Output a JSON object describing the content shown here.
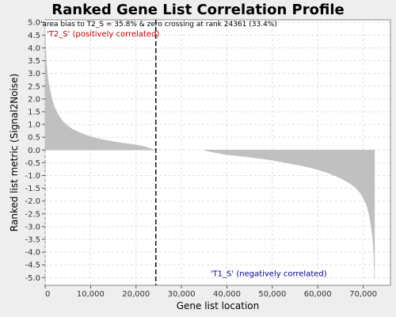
{
  "chart_data": {
    "type": "area",
    "title": "Ranked Gene List Correlation Profile",
    "xlabel": "Gene list location",
    "ylabel": "Ranked list metric (Signal2Noise)",
    "xlim": [
      0,
      76000
    ],
    "ylim": [
      -5.3,
      5.1
    ],
    "xticks": [
      0,
      10000,
      20000,
      30000,
      40000,
      50000,
      60000,
      70000
    ],
    "xtick_labels": [
      "0",
      "10,000",
      "20,000",
      "30,000",
      "40,000",
      "50,000",
      "60,000",
      "70,000"
    ],
    "yticks": [
      5.0,
      4.5,
      4.0,
      3.5,
      3.0,
      2.5,
      2.0,
      1.5,
      1.0,
      0.5,
      0.0,
      -0.5,
      -1.0,
      -1.5,
      -2.0,
      -2.5,
      -3.0,
      -3.5,
      -4.0,
      -4.5,
      -5.0
    ],
    "ytick_labels": [
      "5.0",
      "4.5",
      "4.0",
      "3.5",
      "3.0",
      "2.5",
      "2.0",
      "1.5",
      "1.0",
      "0.5",
      "0.0",
      "-0.5",
      "-1.0",
      "-1.5",
      "-2.0",
      "-2.5",
      "-3.0",
      "-3.5",
      "-4.0",
      "-4.5",
      "-5.0"
    ],
    "grid": true,
    "fill_color": "#c0c0c0",
    "series": [
      {
        "x": [
          0,
          200,
          600,
          1000,
          1500,
          2000,
          3000,
          4000,
          5000,
          6000,
          8000,
          10000,
          12000,
          14000,
          16000,
          18000,
          20000,
          21500,
          22500,
          23500,
          24000,
          24361
        ],
        "values": [
          5.0,
          3.6,
          2.8,
          2.4,
          2.0,
          1.7,
          1.35,
          1.1,
          0.95,
          0.82,
          0.65,
          0.52,
          0.43,
          0.36,
          0.3,
          0.25,
          0.2,
          0.15,
          0.1,
          0.04,
          0.015,
          0.0
        ]
      },
      {
        "x": [
          35000,
          36000,
          38000,
          40000,
          42000,
          45000,
          48000,
          50000,
          53000,
          56000,
          59000,
          62000,
          65000,
          67000,
          68500,
          69500,
          70500,
          71000,
          71500,
          72000,
          72300,
          72500
        ],
        "values": [
          0.0,
          -0.05,
          -0.12,
          -0.18,
          -0.22,
          -0.28,
          -0.35,
          -0.4,
          -0.5,
          -0.6,
          -0.72,
          -0.88,
          -1.1,
          -1.3,
          -1.5,
          -1.72,
          -2.05,
          -2.3,
          -2.7,
          -3.3,
          -4.0,
          -5.0
        ]
      }
    ],
    "zero_crossing_rank": 24361,
    "annotations": {
      "summary": "'area bias to T2_S = 35.8% & zero crossing at rank 24361 (33.4%)",
      "positive_label": "'T2_S' (positively correlated)",
      "negative_label": "'T1_S' (negatively correlated)"
    },
    "colors": {
      "positive_label": "#c00000",
      "negative_label": "#00008b",
      "zero_line": "#000000"
    }
  }
}
